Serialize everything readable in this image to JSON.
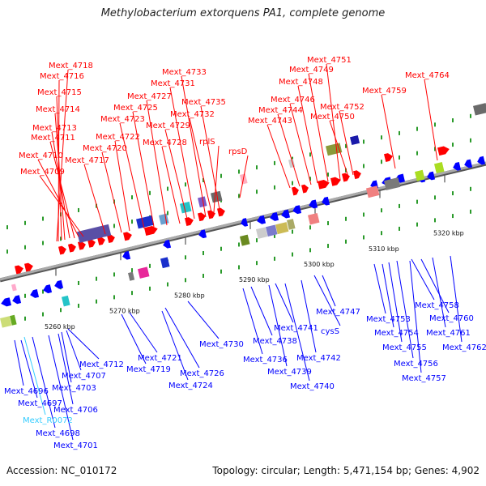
{
  "title": "Methylobacterium extorquens PA1, complete genome",
  "footer": {
    "accession": "Accession: NC_010172",
    "summary": "Topology: circular; Length: 5,471,154 bp; Genes: 4,902"
  },
  "colors": {
    "forward": "#ff0000",
    "reverse": "#0000ff",
    "rna": "#33ccff",
    "backbone": "#888888"
  },
  "ticks": [
    "5260 kbp",
    "5270 kbp",
    "5280 kbp",
    "5290 kbp",
    "5300 kbp",
    "5310 kbp",
    "5320 kbp"
  ],
  "forward_labels": [
    "Mext_4718",
    "Mext_4716",
    "Mext_4715",
    "Mext_4714",
    "Mext_4713",
    "Mext_4711",
    "Mext_4710",
    "Mext_4709",
    "Mext_4717",
    "Mext_4720",
    "Mext_4722",
    "Mext_4723",
    "Mext_4725",
    "Mext_4727",
    "Mext_4728",
    "Mext_4729",
    "Mext_4731",
    "Mext_4733",
    "Mext_4732",
    "Mext_4735",
    "rplS",
    "rpsD",
    "Mext_4743",
    "Mext_4744",
    "Mext_4746",
    "Mext_4748",
    "Mext_4749",
    "Mext_4751",
    "Mext_4750",
    "Mext_4752",
    "Mext_4759",
    "Mext_4764"
  ],
  "reverse_labels": [
    "Mext_4696",
    "Mext_4697",
    "Mext_4698",
    "Mext_4701",
    "Mext_4706",
    "Mext_4703",
    "Mext_4707",
    "Mext_4712",
    "Mext_4721",
    "Mext_4719",
    "Mext_4726",
    "Mext_4724",
    "Mext_4730",
    "Mext_4736",
    "Mext_4738",
    "Mext_4739",
    "Mext_4741",
    "Mext_4740",
    "Mext_4742",
    "cysS",
    "Mext_4747",
    "Mext_4753",
    "Mext_4754",
    "Mext_4755",
    "Mext_4756",
    "Mext_4757",
    "Mext_4758",
    "Mext_4760",
    "Mext_4761",
    "Mext_4762"
  ],
  "rna_labels": [
    "Mext_R0072"
  ]
}
